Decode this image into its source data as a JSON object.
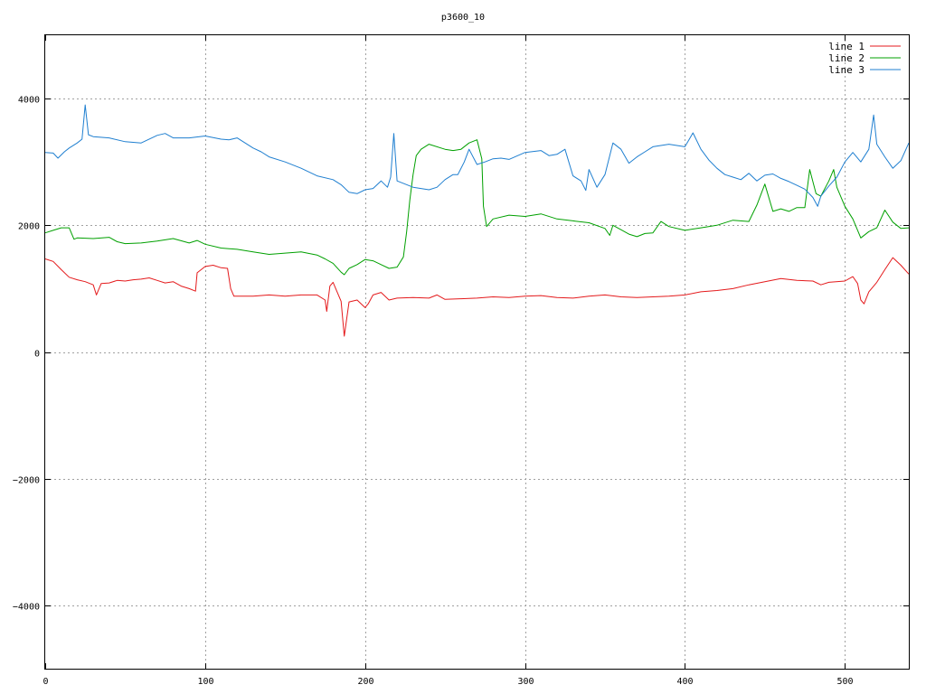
{
  "chart_data": {
    "type": "line",
    "title": "p3600_10",
    "xlabel": "",
    "ylabel": "",
    "xlim": [
      0,
      540
    ],
    "ylim": [
      -5000,
      5000
    ],
    "xticks": [
      0,
      100,
      200,
      300,
      400,
      500
    ],
    "yticks": [
      -4000,
      -2000,
      0,
      2000,
      4000
    ],
    "grid": true,
    "legend_position": "top-right",
    "series": [
      {
        "name": "line 1",
        "color": "#e41a1c",
        "points": [
          [
            0,
            1470
          ],
          [
            5,
            1430
          ],
          [
            10,
            1300
          ],
          [
            15,
            1180
          ],
          [
            20,
            1140
          ],
          [
            25,
            1110
          ],
          [
            30,
            1060
          ],
          [
            32,
            900
          ],
          [
            35,
            1080
          ],
          [
            40,
            1090
          ],
          [
            45,
            1130
          ],
          [
            50,
            1120
          ],
          [
            55,
            1140
          ],
          [
            60,
            1150
          ],
          [
            65,
            1170
          ],
          [
            70,
            1130
          ],
          [
            75,
            1090
          ],
          [
            80,
            1110
          ],
          [
            85,
            1040
          ],
          [
            90,
            1000
          ],
          [
            94,
            960
          ],
          [
            95,
            1250
          ],
          [
            100,
            1350
          ],
          [
            105,
            1370
          ],
          [
            110,
            1330
          ],
          [
            114,
            1320
          ],
          [
            116,
            1000
          ],
          [
            118,
            880
          ],
          [
            120,
            880
          ],
          [
            130,
            880
          ],
          [
            140,
            900
          ],
          [
            150,
            880
          ],
          [
            160,
            900
          ],
          [
            170,
            900
          ],
          [
            175,
            820
          ],
          [
            176,
            640
          ],
          [
            178,
            1040
          ],
          [
            180,
            1100
          ],
          [
            185,
            800
          ],
          [
            187,
            250
          ],
          [
            190,
            790
          ],
          [
            195,
            820
          ],
          [
            200,
            700
          ],
          [
            202,
            760
          ],
          [
            205,
            900
          ],
          [
            210,
            940
          ],
          [
            215,
            820
          ],
          [
            220,
            850
          ],
          [
            230,
            860
          ],
          [
            240,
            850
          ],
          [
            245,
            900
          ],
          [
            250,
            830
          ],
          [
            260,
            840
          ],
          [
            270,
            850
          ],
          [
            280,
            870
          ],
          [
            290,
            860
          ],
          [
            300,
            880
          ],
          [
            310,
            890
          ],
          [
            320,
            860
          ],
          [
            330,
            850
          ],
          [
            340,
            880
          ],
          [
            350,
            900
          ],
          [
            360,
            870
          ],
          [
            370,
            860
          ],
          [
            380,
            870
          ],
          [
            390,
            880
          ],
          [
            400,
            900
          ],
          [
            410,
            950
          ],
          [
            420,
            970
          ],
          [
            430,
            1000
          ],
          [
            440,
            1060
          ],
          [
            450,
            1110
          ],
          [
            460,
            1160
          ],
          [
            470,
            1130
          ],
          [
            480,
            1120
          ],
          [
            485,
            1060
          ],
          [
            490,
            1100
          ],
          [
            500,
            1120
          ],
          [
            505,
            1190
          ],
          [
            508,
            1080
          ],
          [
            510,
            820
          ],
          [
            512,
            760
          ],
          [
            515,
            950
          ],
          [
            520,
            1100
          ],
          [
            525,
            1300
          ],
          [
            530,
            1490
          ],
          [
            535,
            1370
          ],
          [
            540,
            1230
          ]
        ]
      },
      {
        "name": "line 2",
        "color": "#00a000",
        "points": [
          [
            0,
            1880
          ],
          [
            5,
            1920
          ],
          [
            10,
            1960
          ],
          [
            15,
            1960
          ],
          [
            18,
            1780
          ],
          [
            20,
            1800
          ],
          [
            30,
            1790
          ],
          [
            40,
            1810
          ],
          [
            45,
            1740
          ],
          [
            50,
            1710
          ],
          [
            60,
            1720
          ],
          [
            70,
            1750
          ],
          [
            80,
            1790
          ],
          [
            90,
            1720
          ],
          [
            95,
            1760
          ],
          [
            100,
            1700
          ],
          [
            110,
            1640
          ],
          [
            120,
            1620
          ],
          [
            130,
            1580
          ],
          [
            140,
            1540
          ],
          [
            150,
            1560
          ],
          [
            160,
            1580
          ],
          [
            170,
            1530
          ],
          [
            175,
            1470
          ],
          [
            180,
            1400
          ],
          [
            185,
            1260
          ],
          [
            187,
            1220
          ],
          [
            190,
            1320
          ],
          [
            195,
            1380
          ],
          [
            200,
            1460
          ],
          [
            205,
            1440
          ],
          [
            210,
            1380
          ],
          [
            215,
            1320
          ],
          [
            220,
            1340
          ],
          [
            224,
            1500
          ],
          [
            226,
            1900
          ],
          [
            228,
            2400
          ],
          [
            230,
            2800
          ],
          [
            232,
            3100
          ],
          [
            235,
            3200
          ],
          [
            240,
            3280
          ],
          [
            250,
            3200
          ],
          [
            255,
            3180
          ],
          [
            260,
            3200
          ],
          [
            265,
            3300
          ],
          [
            270,
            3350
          ],
          [
            273,
            3050
          ],
          [
            274,
            2300
          ],
          [
            276,
            1980
          ],
          [
            280,
            2100
          ],
          [
            290,
            2160
          ],
          [
            300,
            2140
          ],
          [
            310,
            2180
          ],
          [
            320,
            2100
          ],
          [
            330,
            2070
          ],
          [
            340,
            2040
          ],
          [
            350,
            1950
          ],
          [
            353,
            1840
          ],
          [
            355,
            2000
          ],
          [
            360,
            1930
          ],
          [
            365,
            1860
          ],
          [
            370,
            1820
          ],
          [
            375,
            1870
          ],
          [
            380,
            1880
          ],
          [
            385,
            2060
          ],
          [
            390,
            1980
          ],
          [
            400,
            1920
          ],
          [
            410,
            1960
          ],
          [
            420,
            2000
          ],
          [
            430,
            2080
          ],
          [
            440,
            2060
          ],
          [
            445,
            2320
          ],
          [
            450,
            2650
          ],
          [
            455,
            2220
          ],
          [
            460,
            2260
          ],
          [
            465,
            2220
          ],
          [
            470,
            2280
          ],
          [
            475,
            2280
          ],
          [
            478,
            2880
          ],
          [
            482,
            2500
          ],
          [
            485,
            2460
          ],
          [
            490,
            2700
          ],
          [
            493,
            2880
          ],
          [
            495,
            2600
          ],
          [
            500,
            2300
          ],
          [
            505,
            2100
          ],
          [
            510,
            1800
          ],
          [
            515,
            1900
          ],
          [
            520,
            1960
          ],
          [
            525,
            2240
          ],
          [
            530,
            2050
          ],
          [
            535,
            1950
          ],
          [
            540,
            1960
          ]
        ]
      },
      {
        "name": "line 3",
        "color": "#1f7fd0",
        "points": [
          [
            0,
            3150
          ],
          [
            5,
            3140
          ],
          [
            8,
            3060
          ],
          [
            12,
            3160
          ],
          [
            15,
            3220
          ],
          [
            20,
            3300
          ],
          [
            23,
            3360
          ],
          [
            25,
            3900
          ],
          [
            27,
            3430
          ],
          [
            30,
            3400
          ],
          [
            40,
            3380
          ],
          [
            50,
            3320
          ],
          [
            60,
            3300
          ],
          [
            70,
            3420
          ],
          [
            75,
            3450
          ],
          [
            80,
            3380
          ],
          [
            90,
            3380
          ],
          [
            100,
            3410
          ],
          [
            110,
            3360
          ],
          [
            115,
            3350
          ],
          [
            120,
            3380
          ],
          [
            130,
            3220
          ],
          [
            135,
            3160
          ],
          [
            140,
            3080
          ],
          [
            150,
            3000
          ],
          [
            160,
            2900
          ],
          [
            170,
            2780
          ],
          [
            180,
            2720
          ],
          [
            185,
            2640
          ],
          [
            190,
            2520
          ],
          [
            195,
            2500
          ],
          [
            200,
            2560
          ],
          [
            205,
            2580
          ],
          [
            210,
            2700
          ],
          [
            214,
            2600
          ],
          [
            216,
            2760
          ],
          [
            218,
            3450
          ],
          [
            220,
            2700
          ],
          [
            230,
            2600
          ],
          [
            240,
            2560
          ],
          [
            245,
            2600
          ],
          [
            250,
            2720
          ],
          [
            255,
            2800
          ],
          [
            258,
            2800
          ],
          [
            262,
            3000
          ],
          [
            265,
            3200
          ],
          [
            270,
            2960
          ],
          [
            275,
            3000
          ],
          [
            280,
            3050
          ],
          [
            285,
            3060
          ],
          [
            290,
            3040
          ],
          [
            300,
            3150
          ],
          [
            310,
            3180
          ],
          [
            315,
            3100
          ],
          [
            320,
            3120
          ],
          [
            325,
            3200
          ],
          [
            330,
            2780
          ],
          [
            335,
            2700
          ],
          [
            338,
            2550
          ],
          [
            340,
            2880
          ],
          [
            345,
            2600
          ],
          [
            350,
            2800
          ],
          [
            355,
            3300
          ],
          [
            360,
            3200
          ],
          [
            365,
            2980
          ],
          [
            370,
            3080
          ],
          [
            375,
            3160
          ],
          [
            380,
            3240
          ],
          [
            390,
            3280
          ],
          [
            400,
            3240
          ],
          [
            405,
            3460
          ],
          [
            410,
            3200
          ],
          [
            415,
            3030
          ],
          [
            420,
            2900
          ],
          [
            425,
            2800
          ],
          [
            430,
            2760
          ],
          [
            435,
            2720
          ],
          [
            440,
            2820
          ],
          [
            445,
            2700
          ],
          [
            450,
            2790
          ],
          [
            455,
            2810
          ],
          [
            460,
            2740
          ],
          [
            465,
            2690
          ],
          [
            470,
            2630
          ],
          [
            475,
            2570
          ],
          [
            480,
            2440
          ],
          [
            483,
            2300
          ],
          [
            485,
            2460
          ],
          [
            490,
            2620
          ],
          [
            495,
            2760
          ],
          [
            500,
            3000
          ],
          [
            505,
            3150
          ],
          [
            510,
            3000
          ],
          [
            515,
            3200
          ],
          [
            518,
            3740
          ],
          [
            520,
            3280
          ],
          [
            525,
            3080
          ],
          [
            530,
            2900
          ],
          [
            535,
            3020
          ],
          [
            540,
            3300
          ]
        ]
      }
    ]
  }
}
